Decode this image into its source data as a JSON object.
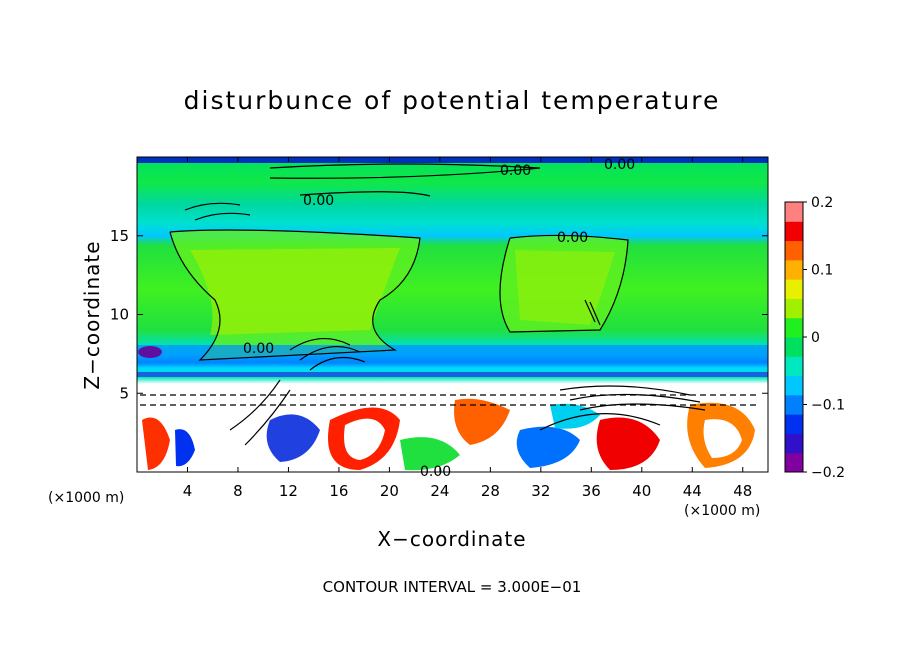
{
  "chart_data": {
    "type": "heatmap",
    "title": "disturbunce of potential temperature",
    "xlabel": "X−coordinate",
    "ylabel": "Z−coordinate",
    "x_unit": "(×1000 m)",
    "x_unit_right": "(×1000 m)",
    "xlim": [
      0,
      50
    ],
    "ylim": [
      0,
      20
    ],
    "x_ticks": [
      4,
      8,
      12,
      16,
      20,
      24,
      28,
      32,
      36,
      40,
      44,
      48
    ],
    "y_ticks": [
      5,
      10,
      15
    ],
    "colorbar": {
      "range": [
        -0.2,
        0.2
      ],
      "ticks": [
        "0.2",
        "0.1",
        "0",
        "−0.1",
        "−0.2"
      ],
      "colors": [
        "#8000a0",
        "#3010c8",
        "#0030f0",
        "#0080ff",
        "#00c8ff",
        "#00e8c0",
        "#00e060",
        "#20f020",
        "#a0f000",
        "#e8f000",
        "#ffb000",
        "#ff6000",
        "#f00000",
        "#ff8080"
      ]
    },
    "contour_labels": [
      "0.00",
      "0.00",
      "0.00",
      "0.00",
      "0.00",
      "0.00"
    ],
    "contour_interval_note": "CONTOUR INTERVAL = 3.000E−01"
  }
}
